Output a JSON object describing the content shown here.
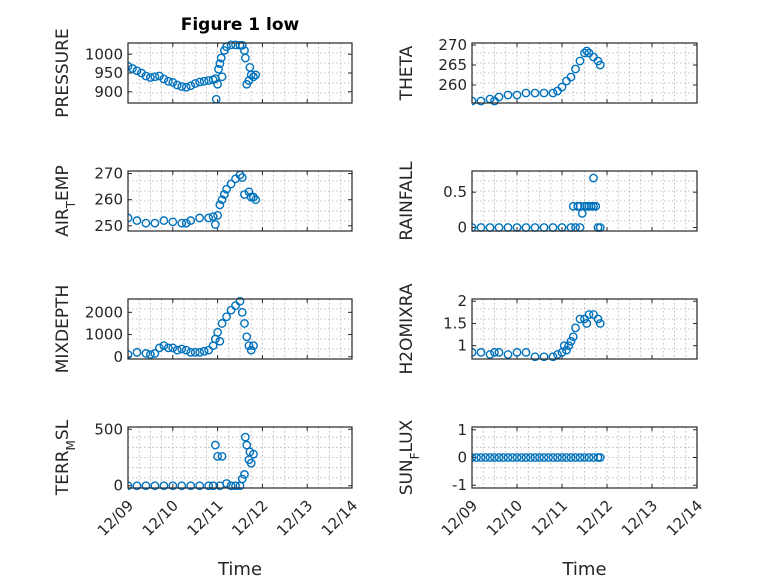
{
  "chart_data": [
    {
      "type": "scatter",
      "title": "Figure 1 low",
      "ylabel": "PRESSURE",
      "ylim": [
        870,
        1030
      ],
      "yticks": [
        900,
        950,
        1000
      ],
      "xlim": [
        0,
        5
      ],
      "xticks": [
        0,
        1,
        2,
        3,
        4,
        5
      ],
      "xticklabels": [],
      "color": "#0072bd",
      "points": [
        [
          0,
          968
        ],
        [
          0.1,
          962
        ],
        [
          0.2,
          956
        ],
        [
          0.3,
          950
        ],
        [
          0.4,
          942
        ],
        [
          0.5,
          938
        ],
        [
          0.6,
          940
        ],
        [
          0.7,
          942
        ],
        [
          0.8,
          934
        ],
        [
          0.9,
          928
        ],
        [
          1.0,
          925
        ],
        [
          1.1,
          918
        ],
        [
          1.2,
          914
        ],
        [
          1.3,
          912
        ],
        [
          1.4,
          916
        ],
        [
          1.5,
          922
        ],
        [
          1.6,
          926
        ],
        [
          1.7,
          928
        ],
        [
          1.8,
          930
        ],
        [
          1.9,
          932
        ],
        [
          1.95,
          935
        ],
        [
          1.97,
          880
        ],
        [
          2.0,
          920
        ],
        [
          2.02,
          960
        ],
        [
          2.05,
          975
        ],
        [
          2.08,
          990
        ],
        [
          2.1,
          940
        ],
        [
          2.15,
          1010
        ],
        [
          2.2,
          1020
        ],
        [
          2.3,
          1025
        ],
        [
          2.4,
          1025
        ],
        [
          2.5,
          1024
        ],
        [
          2.55,
          1024
        ],
        [
          2.6,
          1010
        ],
        [
          2.62,
          990
        ],
        [
          2.65,
          920
        ],
        [
          2.7,
          930
        ],
        [
          2.72,
          965
        ],
        [
          2.75,
          945
        ],
        [
          2.8,
          940
        ],
        [
          2.85,
          945
        ]
      ]
    },
    {
      "type": "scatter",
      "title": "",
      "ylabel": "THETA",
      "ylim": [
        255.5,
        270.5
      ],
      "yticks": [
        260,
        265,
        270
      ],
      "xlim": [
        0,
        5
      ],
      "xticks": [
        0,
        1,
        2,
        3,
        4,
        5
      ],
      "xticklabels": [],
      "color": "#0072bd",
      "points": [
        [
          0,
          256
        ],
        [
          0.2,
          256
        ],
        [
          0.4,
          256.5
        ],
        [
          0.5,
          256
        ],
        [
          0.6,
          257
        ],
        [
          0.8,
          257.5
        ],
        [
          1.0,
          257.5
        ],
        [
          1.2,
          258
        ],
        [
          1.4,
          258
        ],
        [
          1.6,
          258
        ],
        [
          1.8,
          258
        ],
        [
          1.9,
          258.5
        ],
        [
          2.0,
          259.5
        ],
        [
          2.1,
          261
        ],
        [
          2.2,
          262
        ],
        [
          2.3,
          264
        ],
        [
          2.4,
          266
        ],
        [
          2.5,
          268
        ],
        [
          2.55,
          268.5
        ],
        [
          2.6,
          268
        ],
        [
          2.7,
          267
        ],
        [
          2.8,
          266
        ],
        [
          2.85,
          265
        ]
      ]
    },
    {
      "type": "scatter",
      "title": "",
      "ylabel": "AIR_TEMP",
      "ylim": [
        248,
        271
      ],
      "yticks": [
        250,
        260,
        270
      ],
      "xlim": [
        0,
        5
      ],
      "xticks": [
        0,
        1,
        2,
        3,
        4,
        5
      ],
      "xticklabels": [],
      "color": "#0072bd",
      "points": [
        [
          0,
          253
        ],
        [
          0.2,
          252
        ],
        [
          0.4,
          251
        ],
        [
          0.6,
          251
        ],
        [
          0.8,
          252
        ],
        [
          1.0,
          251.5
        ],
        [
          1.2,
          251
        ],
        [
          1.3,
          251
        ],
        [
          1.4,
          252
        ],
        [
          1.6,
          253
        ],
        [
          1.8,
          253
        ],
        [
          1.9,
          253.5
        ],
        [
          1.95,
          250.5
        ],
        [
          2.0,
          254
        ],
        [
          2.05,
          258
        ],
        [
          2.1,
          260
        ],
        [
          2.15,
          262
        ],
        [
          2.2,
          264
        ],
        [
          2.3,
          266
        ],
        [
          2.4,
          268
        ],
        [
          2.5,
          269.5
        ],
        [
          2.55,
          268.5
        ],
        [
          2.6,
          262
        ],
        [
          2.7,
          263
        ],
        [
          2.75,
          261
        ],
        [
          2.8,
          261
        ],
        [
          2.85,
          260
        ]
      ]
    },
    {
      "type": "scatter",
      "title": "",
      "ylabel": "RAINFALL",
      "ylim": [
        -0.05,
        0.8
      ],
      "yticks": [
        0,
        0.5
      ],
      "xlim": [
        0,
        5
      ],
      "xticks": [
        0,
        1,
        2,
        3,
        4,
        5
      ],
      "xticklabels": [],
      "color": "#0072bd",
      "points": [
        [
          0,
          0
        ],
        [
          0.2,
          0
        ],
        [
          0.4,
          0
        ],
        [
          0.6,
          0
        ],
        [
          0.8,
          0
        ],
        [
          1.0,
          0
        ],
        [
          1.2,
          0
        ],
        [
          1.4,
          0
        ],
        [
          1.6,
          0
        ],
        [
          1.8,
          0
        ],
        [
          2.0,
          0
        ],
        [
          2.2,
          0
        ],
        [
          2.3,
          0
        ],
        [
          2.25,
          0.3
        ],
        [
          2.35,
          0.3
        ],
        [
          2.4,
          0.3
        ],
        [
          2.45,
          0.2
        ],
        [
          2.5,
          0.3
        ],
        [
          2.55,
          0.3
        ],
        [
          2.4,
          0
        ],
        [
          2.6,
          0.3
        ],
        [
          2.65,
          0.3
        ],
        [
          2.7,
          0.3
        ],
        [
          2.75,
          0.3
        ],
        [
          2.7,
          0.7
        ],
        [
          2.8,
          0
        ],
        [
          2.85,
          0
        ]
      ]
    },
    {
      "type": "scatter",
      "title": "",
      "ylabel": "MIXDEPTH",
      "ylim": [
        -100,
        2600
      ],
      "yticks": [
        0,
        1000,
        2000
      ],
      "xlim": [
        0,
        5
      ],
      "xticks": [
        0,
        1,
        2,
        3,
        4,
        5
      ],
      "xticklabels": [],
      "color": "#0072bd",
      "points": [
        [
          0,
          100
        ],
        [
          0.2,
          200
        ],
        [
          0.4,
          150
        ],
        [
          0.5,
          100
        ],
        [
          0.6,
          150
        ],
        [
          0.7,
          400
        ],
        [
          0.8,
          500
        ],
        [
          0.9,
          400
        ],
        [
          1.0,
          400
        ],
        [
          1.1,
          300
        ],
        [
          1.2,
          350
        ],
        [
          1.3,
          300
        ],
        [
          1.4,
          200
        ],
        [
          1.5,
          200
        ],
        [
          1.6,
          200
        ],
        [
          1.7,
          250
        ],
        [
          1.8,
          300
        ],
        [
          1.9,
          500
        ],
        [
          1.95,
          800
        ],
        [
          2.0,
          1100
        ],
        [
          2.05,
          700
        ],
        [
          2.1,
          1500
        ],
        [
          2.2,
          1800
        ],
        [
          2.3,
          2100
        ],
        [
          2.4,
          2300
        ],
        [
          2.5,
          2500
        ],
        [
          2.55,
          2000
        ],
        [
          2.6,
          1500
        ],
        [
          2.65,
          900
        ],
        [
          2.7,
          500
        ],
        [
          2.75,
          300
        ],
        [
          2.8,
          500
        ]
      ]
    },
    {
      "type": "scatter",
      "title": "",
      "ylabel": "H2OMIXRA",
      "ylim": [
        0.7,
        2.05
      ],
      "yticks": [
        1,
        1.5,
        2
      ],
      "xlim": [
        0,
        5
      ],
      "xticks": [
        0,
        1,
        2,
        3,
        4,
        5
      ],
      "xticklabels": [],
      "color": "#0072bd",
      "points": [
        [
          0,
          0.85
        ],
        [
          0.2,
          0.85
        ],
        [
          0.4,
          0.8
        ],
        [
          0.5,
          0.85
        ],
        [
          0.6,
          0.85
        ],
        [
          0.8,
          0.8
        ],
        [
          1.0,
          0.85
        ],
        [
          1.2,
          0.85
        ],
        [
          1.4,
          0.75
        ],
        [
          1.6,
          0.75
        ],
        [
          1.8,
          0.75
        ],
        [
          1.9,
          0.8
        ],
        [
          2.0,
          0.85
        ],
        [
          2.05,
          1.0
        ],
        [
          2.1,
          0.9
        ],
        [
          2.15,
          1.0
        ],
        [
          2.2,
          1.1
        ],
        [
          2.25,
          1.2
        ],
        [
          2.3,
          1.4
        ],
        [
          2.4,
          1.6
        ],
        [
          2.5,
          1.6
        ],
        [
          2.55,
          1.5
        ],
        [
          2.6,
          1.7
        ],
        [
          2.7,
          1.7
        ],
        [
          2.8,
          1.6
        ],
        [
          2.85,
          1.5
        ]
      ]
    },
    {
      "type": "scatter",
      "title": "",
      "ylabel": "TERR_MSL",
      "ylim": [
        -20,
        520
      ],
      "yticks": [
        0,
        500
      ],
      "xlim": [
        0,
        5
      ],
      "xticks": [
        0,
        1,
        2,
        3,
        4,
        5
      ],
      "xticklabels": [
        "12/09",
        "12/10",
        "12/11",
        "12/12",
        "12/13",
        "12/14"
      ],
      "xlabel": "Time",
      "color": "#0072bd",
      "points": [
        [
          0,
          0
        ],
        [
          0.2,
          0
        ],
        [
          0.4,
          0
        ],
        [
          0.6,
          0
        ],
        [
          0.8,
          0
        ],
        [
          1.0,
          0
        ],
        [
          1.2,
          0
        ],
        [
          1.4,
          0
        ],
        [
          1.6,
          0
        ],
        [
          1.8,
          0
        ],
        [
          1.9,
          0
        ],
        [
          1.95,
          360
        ],
        [
          2.0,
          260
        ],
        [
          2.05,
          0
        ],
        [
          2.1,
          260
        ],
        [
          2.2,
          20
        ],
        [
          2.3,
          0
        ],
        [
          2.4,
          0
        ],
        [
          2.5,
          0
        ],
        [
          2.55,
          60
        ],
        [
          2.6,
          100
        ],
        [
          2.62,
          430
        ],
        [
          2.65,
          360
        ],
        [
          2.7,
          230
        ],
        [
          2.72,
          300
        ],
        [
          2.75,
          200
        ],
        [
          2.8,
          280
        ]
      ]
    },
    {
      "type": "scatter",
      "title": "",
      "ylabel": "SUN_FLUX",
      "ylim": [
        -1.1,
        1.1
      ],
      "yticks": [
        -1,
        0,
        1
      ],
      "xlim": [
        0,
        5
      ],
      "xticks": [
        0,
        1,
        2,
        3,
        4,
        5
      ],
      "xticklabels": [
        "12/09",
        "12/10",
        "12/11",
        "12/12",
        "12/13",
        "12/14"
      ],
      "xlabel": "Time",
      "color": "#0072bd",
      "points": [
        [
          0,
          0
        ],
        [
          0.1,
          0
        ],
        [
          0.2,
          0
        ],
        [
          0.3,
          0
        ],
        [
          0.4,
          0
        ],
        [
          0.5,
          0
        ],
        [
          0.6,
          0
        ],
        [
          0.7,
          0
        ],
        [
          0.8,
          0
        ],
        [
          0.9,
          0
        ],
        [
          1.0,
          0
        ],
        [
          1.1,
          0
        ],
        [
          1.2,
          0
        ],
        [
          1.3,
          0
        ],
        [
          1.4,
          0
        ],
        [
          1.5,
          0
        ],
        [
          1.6,
          0
        ],
        [
          1.7,
          0
        ],
        [
          1.8,
          0
        ],
        [
          1.9,
          0
        ],
        [
          2.0,
          0
        ],
        [
          2.1,
          0
        ],
        [
          2.2,
          0
        ],
        [
          2.3,
          0
        ],
        [
          2.4,
          0
        ],
        [
          2.5,
          0
        ],
        [
          2.6,
          0
        ],
        [
          2.7,
          0
        ],
        [
          2.8,
          0
        ],
        [
          2.85,
          0
        ]
      ]
    }
  ]
}
